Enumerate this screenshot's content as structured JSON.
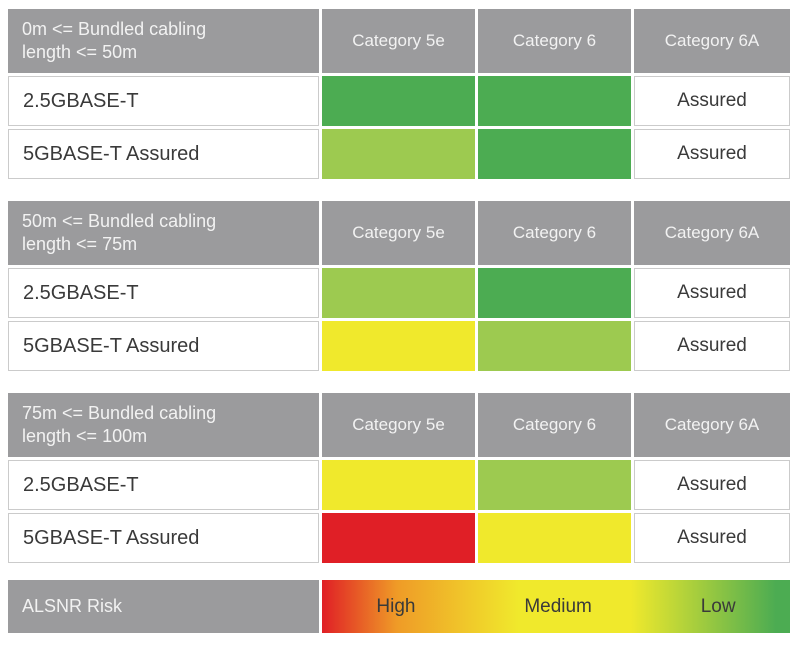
{
  "colors": {
    "header_gray": "#9b9b9d",
    "green_dark": "#4cac52",
    "green_light": "#9dca50",
    "yellow": "#f0e92c",
    "red": "#e01f26",
    "cell_border": "#cbcbcb",
    "text_dark": "#3a3a3a",
    "header_text": "#f2f2f2"
  },
  "tables": [
    {
      "title": "0m <= Bundled cabling length <= 50m",
      "columns": [
        "Category 5e",
        "Category 6",
        "Category 6A"
      ],
      "rows": [
        {
          "label": "2.5GBASE-T",
          "cells": [
            {
              "fill": "#4cac52"
            },
            {
              "fill": "#4cac52"
            },
            {
              "text": "Assured"
            }
          ]
        },
        {
          "label": "5GBASE-T Assured",
          "cells": [
            {
              "fill": "#9dca50"
            },
            {
              "fill": "#4cac52"
            },
            {
              "text": "Assured"
            }
          ]
        }
      ]
    },
    {
      "title": "50m <= Bundled cabling length <= 75m",
      "columns": [
        "Category 5e",
        "Category 6",
        "Category 6A"
      ],
      "rows": [
        {
          "label": "2.5GBASE-T",
          "cells": [
            {
              "fill": "#9dca50"
            },
            {
              "fill": "#4cac52"
            },
            {
              "text": "Assured"
            }
          ]
        },
        {
          "label": "5GBASE-T Assured",
          "cells": [
            {
              "fill": "#f0e92c"
            },
            {
              "fill": "#9dca50"
            },
            {
              "text": "Assured"
            }
          ]
        }
      ]
    },
    {
      "title": "75m <= Bundled cabling length <= 100m",
      "columns": [
        "Category 5e",
        "Category 6",
        "Category 6A"
      ],
      "rows": [
        {
          "label": "2.5GBASE-T",
          "cells": [
            {
              "fill": "#f0e92c"
            },
            {
              "fill": "#9dca50"
            },
            {
              "text": "Assured"
            }
          ]
        },
        {
          "label": "5GBASE-T Assured",
          "cells": [
            {
              "fill": "#e01f26"
            },
            {
              "fill": "#f0e92c"
            },
            {
              "text": "Assured"
            }
          ]
        }
      ]
    }
  ],
  "legend": {
    "label": "ALSNR Risk",
    "levels": [
      "High",
      "Medium",
      "Low"
    ],
    "gradient": [
      "#e01f26 0%",
      "#ef9b27 16%",
      "#f0e92c 42%",
      "#f0e92c 66%",
      "#4cac52 97%"
    ]
  }
}
